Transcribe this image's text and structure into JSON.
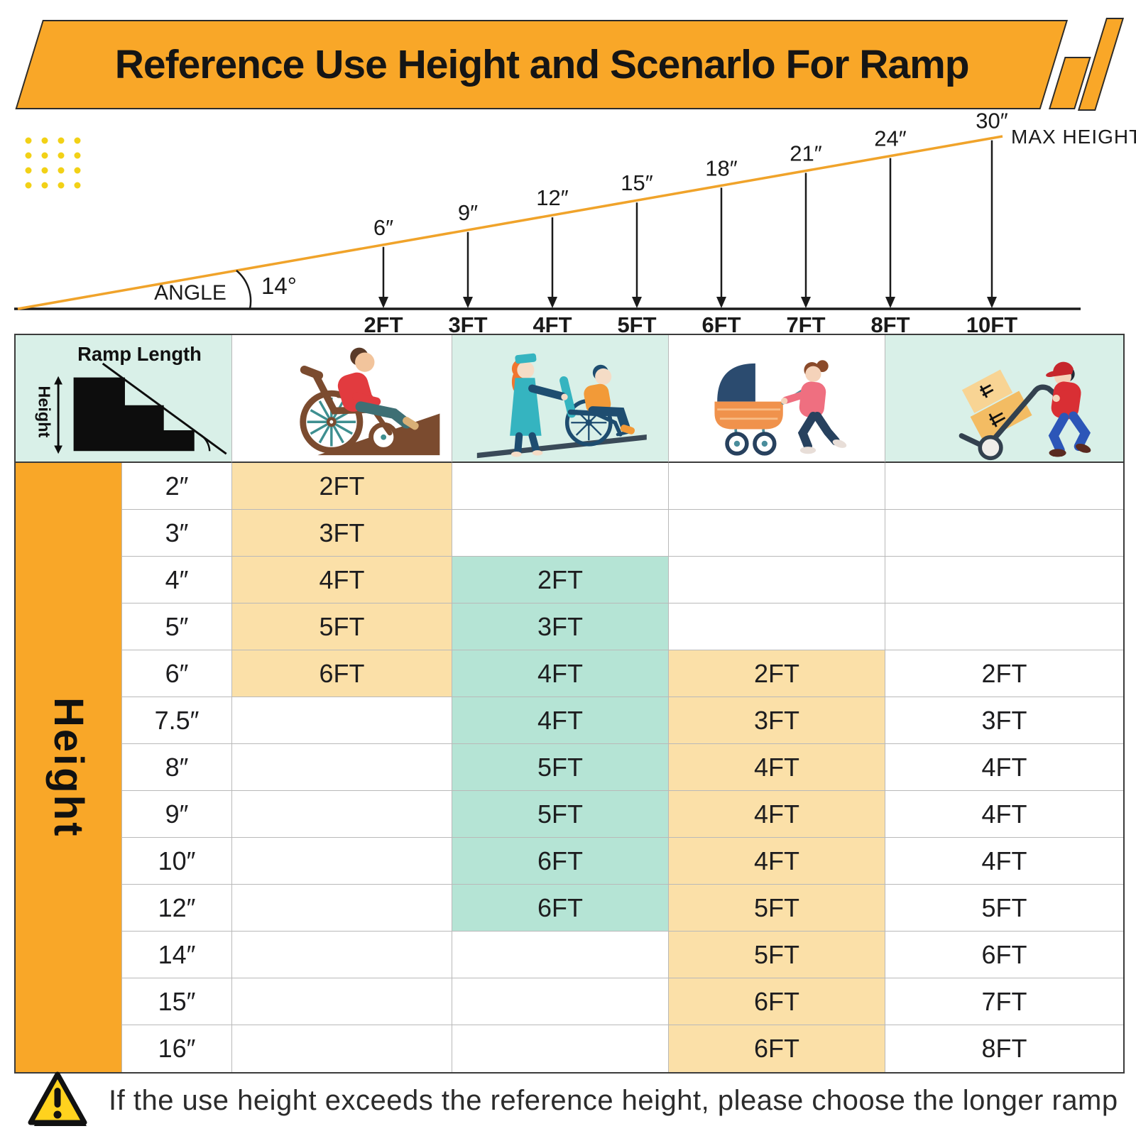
{
  "title": "Reference Use Height and Scenarlo For Ramp",
  "colors": {
    "orange": "#F9A728",
    "cream_highlight": "#FBE0A8",
    "mint_highlight": "#B5E4D5",
    "header_mint": "#D9F0E8",
    "ramp_line": "#F0A32A",
    "dot_yellow": "#F2D116",
    "warning_yellow": "#FFD21E"
  },
  "diagram": {
    "angle_label": "ANGLE",
    "angle_value": "14°",
    "max_height_label": "MAX HEIGHT",
    "markers": [
      {
        "height": "6″",
        "length": "2FT"
      },
      {
        "height": "9″",
        "length": "3FT"
      },
      {
        "height": "12″",
        "length": "4FT"
      },
      {
        "height": "15″",
        "length": "5FT"
      },
      {
        "height": "18″",
        "length": "6FT"
      },
      {
        "height": "21″",
        "length": "7FT"
      },
      {
        "height": "24″",
        "length": "8FT"
      },
      {
        "height": "30″",
        "length": "10FT"
      }
    ]
  },
  "table": {
    "corner": {
      "ramp_length_label": "Ramp Length",
      "height_label": "Height"
    },
    "row_axis_label": "Height",
    "columns": [
      {
        "icon": "wheelchair-user-icon",
        "highlight": "#FBE0A8"
      },
      {
        "icon": "nurse-pushing-wheelchair-icon",
        "highlight": "#B5E4D5"
      },
      {
        "icon": "stroller-icon",
        "highlight": "#FBE0A8"
      },
      {
        "icon": "hand-truck-icon",
        "highlight": null
      }
    ],
    "rows": [
      {
        "height": "2″",
        "values": [
          "2FT",
          "",
          "",
          ""
        ]
      },
      {
        "height": "3″",
        "values": [
          "3FT",
          "",
          "",
          ""
        ]
      },
      {
        "height": "4″",
        "values": [
          "4FT",
          "2FT",
          "",
          ""
        ]
      },
      {
        "height": "5″",
        "values": [
          "5FT",
          "3FT",
          "",
          ""
        ]
      },
      {
        "height": "6″",
        "values": [
          "6FT",
          "4FT",
          "2FT",
          "2FT"
        ]
      },
      {
        "height": "7.5″",
        "values": [
          "",
          "4FT",
          "3FT",
          "3FT"
        ]
      },
      {
        "height": "8″",
        "values": [
          "",
          "5FT",
          "4FT",
          "4FT"
        ]
      },
      {
        "height": "9″",
        "values": [
          "",
          "5FT",
          "4FT",
          "4FT"
        ]
      },
      {
        "height": "10″",
        "values": [
          "",
          "6FT",
          "4FT",
          "4FT"
        ]
      },
      {
        "height": "12″",
        "values": [
          "",
          "6FT",
          "5FT",
          "5FT"
        ]
      },
      {
        "height": "14″",
        "values": [
          "",
          "",
          "5FT",
          "6FT"
        ]
      },
      {
        "height": "15″",
        "values": [
          "",
          "",
          "6FT",
          "7FT"
        ]
      },
      {
        "height": "16″",
        "values": [
          "",
          "",
          "6FT",
          "8FT"
        ]
      }
    ]
  },
  "footer": {
    "note": "If the use height exceeds the reference height, please choose the longer ramp"
  }
}
